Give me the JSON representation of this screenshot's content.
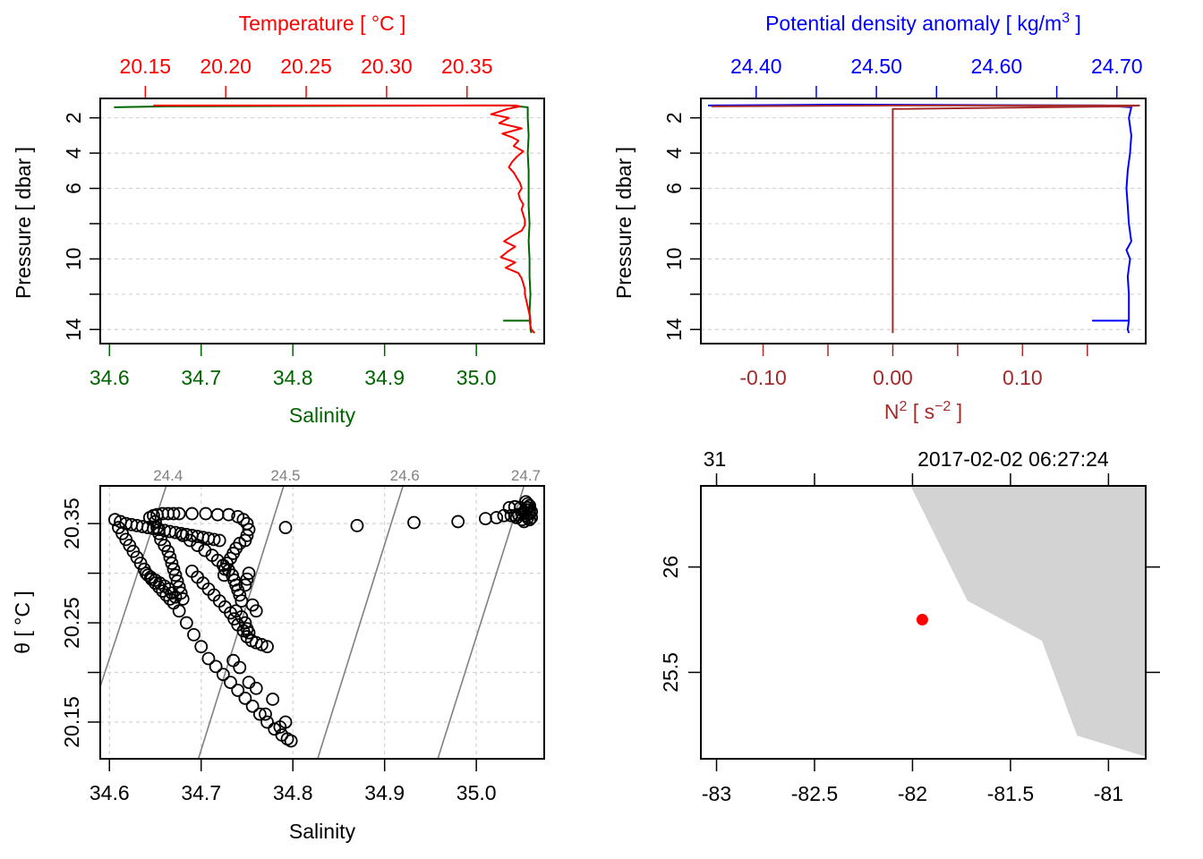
{
  "chart_data": [
    {
      "id": "profile_ts",
      "type": "line",
      "title": "",
      "ylabel": "Pressure [ dbar ]",
      "ylim": [
        14.8,
        0.9
      ],
      "yticks": [
        2,
        4,
        6,
        8,
        10,
        12,
        14
      ],
      "ytick_labels": [
        "2",
        "4",
        "6",
        "",
        "10",
        "",
        "14"
      ],
      "grid": true,
      "top_axis": {
        "label": "Temperature [ °C ]",
        "color": "#ff0000",
        "ticks": [
          20.15,
          20.2,
          20.25,
          20.3,
          20.35
        ],
        "tick_labels": [
          "20.15",
          "20.20",
          "20.25",
          "20.30",
          "20.35"
        ],
        "range": [
          20.122,
          20.398
        ]
      },
      "bottom_axis": {
        "label": "Salinity",
        "color": "#006400",
        "ticks": [
          34.6,
          34.7,
          34.8,
          34.9,
          35.0
        ],
        "tick_labels": [
          "34.6",
          "34.7",
          "34.8",
          "34.9",
          "35.0"
        ],
        "range": [
          34.59,
          35.074
        ]
      },
      "series": [
        {
          "name": "Temperature",
          "color": "#ff0000",
          "pressure": [
            1.3,
            1.3,
            1.35,
            1.5,
            1.8,
            2.0,
            2.3,
            2.6,
            2.9,
            3.1,
            3.3,
            3.6,
            3.9,
            4.2,
            4.5,
            4.8,
            5.1,
            5.4,
            5.7,
            6.0,
            6.3,
            6.6,
            6.9,
            7.2,
            7.5,
            7.8,
            8.1,
            8.4,
            8.7,
            9.0,
            9.3,
            9.6,
            9.9,
            10.2,
            10.5,
            10.8,
            11.1,
            11.4,
            11.7,
            12.0,
            12.4,
            12.8,
            13.2,
            13.6,
            14.0,
            14.2
          ],
          "values": [
            20.155,
            20.38,
            20.383,
            20.375,
            20.365,
            20.376,
            20.37,
            20.384,
            20.372,
            20.378,
            20.382,
            20.379,
            20.385,
            20.381,
            20.378,
            20.376,
            20.379,
            20.381,
            20.383,
            20.384,
            20.382,
            20.383,
            20.385,
            20.384,
            20.385,
            20.386,
            20.386,
            20.384,
            20.378,
            20.373,
            20.38,
            20.375,
            20.371,
            20.38,
            20.374,
            20.382,
            20.384,
            20.385,
            20.386,
            20.386,
            20.387,
            20.388,
            20.389,
            20.389,
            20.39,
            20.392
          ]
        },
        {
          "name": "Salinity",
          "color": "#006400",
          "pressure": [
            1.4,
            1.35,
            1.3,
            1.3,
            1.4,
            2.0,
            3.0,
            4.0,
            5.0,
            6.0,
            7.0,
            8.0,
            9.0,
            10.0,
            11.0,
            12.0,
            13.0,
            13.5,
            13.5,
            13.5,
            14.0,
            14.2
          ],
          "values": [
            34.605,
            34.66,
            35.0,
            35.035,
            35.056,
            35.056,
            35.057,
            35.056,
            35.057,
            35.057,
            35.057,
            35.058,
            35.057,
            35.058,
            35.058,
            35.059,
            35.058,
            35.059,
            35.03,
            35.059,
            35.059,
            35.06
          ]
        }
      ]
    },
    {
      "id": "profile_density_n2",
      "type": "line",
      "title": "",
      "ylabel": "Pressure [ dbar ]",
      "ylim": [
        14.8,
        0.9
      ],
      "yticks": [
        2,
        4,
        6,
        8,
        10,
        12,
        14
      ],
      "ytick_labels": [
        "2",
        "4",
        "6",
        "",
        "10",
        "",
        "14"
      ],
      "grid": true,
      "top_axis": {
        "label": "Potential density anomaly [ kg/m³ ]",
        "label_main": "Potential density anomaly [ kg/m",
        "label_sup": "3",
        "label_end": " ]",
        "color": "#0000ff",
        "ticks": [
          24.4,
          24.45,
          24.5,
          24.55,
          24.6,
          24.65,
          24.7
        ],
        "tick_labels": [
          "24.40",
          "",
          "24.50",
          "",
          "24.60",
          "",
          "24.70"
        ],
        "range": [
          24.354,
          24.724
        ]
      },
      "bottom_axis": {
        "label": "N² [ s⁻² ]",
        "label_main": "N",
        "label_sup": "2",
        "label_mid": " [ s",
        "label_sup2": "−2",
        "label_end": " ]",
        "color": "#a52a2a",
        "ticks": [
          -0.1,
          -0.05,
          0.0,
          0.05,
          0.1,
          0.15
        ],
        "tick_labels": [
          "-0.10",
          "",
          "0.00",
          "",
          "0.10",
          ""
        ],
        "range": [
          -0.148,
          0.195
        ]
      },
      "series": [
        {
          "name": "Potential density anomaly",
          "color": "#0000ff",
          "pressure": [
            1.3,
            1.25,
            1.3,
            1.35,
            1.4,
            2.0,
            3.0,
            4.0,
            5.0,
            6.0,
            7.0,
            8.0,
            9.0,
            9.5,
            10.0,
            11.0,
            12.0,
            13.0,
            13.5,
            13.5,
            13.5,
            14.0,
            14.2
          ],
          "values": [
            24.36,
            24.47,
            24.69,
            24.7,
            24.712,
            24.71,
            24.712,
            24.711,
            24.709,
            24.708,
            24.709,
            24.71,
            24.712,
            24.708,
            24.711,
            24.709,
            24.71,
            24.71,
            24.71,
            24.68,
            24.71,
            24.709,
            24.71
          ]
        },
        {
          "name": "N2",
          "color": "#a52a2a",
          "pressure": [
            1.35,
            1.3,
            1.3,
            1.35,
            1.5,
            14.2
          ],
          "values": [
            -0.14,
            0.0,
            0.19,
            0.18,
            0.0,
            0.0
          ]
        }
      ]
    },
    {
      "id": "ts_diagram",
      "type": "scatter",
      "title": "",
      "xlabel": "Salinity",
      "ylabel": "θ [ °C ]",
      "xlim": [
        34.59,
        35.074
      ],
      "ylim": [
        20.113,
        20.388
      ],
      "xticks": [
        34.6,
        34.7,
        34.8,
        34.9,
        35.0
      ],
      "xtick_labels": [
        "34.6",
        "34.7",
        "34.8",
        "34.9",
        "35.0"
      ],
      "yticks": [
        20.15,
        20.2,
        20.25,
        20.3,
        20.35
      ],
      "ytick_labels": [
        "20.15",
        "",
        "20.25",
        "",
        "20.35"
      ],
      "grid": true,
      "isopycnals": {
        "color": "#808080",
        "levels": [
          24.4,
          24.5,
          24.6,
          24.7
        ],
        "labels": [
          "24.4",
          "24.5",
          "24.6",
          "24.7"
        ],
        "lines": [
          {
            "level": 24.4,
            "s0": 34.589,
            "t0": 20.183,
            "s1": 34.662,
            "t1": 20.388
          },
          {
            "level": 24.5,
            "s0": 34.697,
            "t0": 20.113,
            "s1": 34.79,
            "t1": 20.388
          },
          {
            "level": 24.6,
            "s0": 34.827,
            "t0": 20.113,
            "s1": 34.92,
            "t1": 20.388
          },
          {
            "level": 24.7,
            "s0": 34.958,
            "t0": 20.113,
            "s1": 35.052,
            "t1": 20.388
          }
        ]
      },
      "points": [
        [
          34.606,
          20.354
        ],
        [
          34.612,
          20.352
        ],
        [
          34.618,
          20.35
        ],
        [
          34.624,
          20.349
        ],
        [
          34.63,
          20.348
        ],
        [
          34.636,
          20.347
        ],
        [
          34.642,
          20.346
        ],
        [
          34.648,
          20.345
        ],
        [
          34.654,
          20.344
        ],
        [
          34.66,
          20.343
        ],
        [
          34.666,
          20.342
        ],
        [
          34.672,
          20.341
        ],
        [
          34.678,
          20.34
        ],
        [
          34.684,
          20.339
        ],
        [
          34.69,
          20.338
        ],
        [
          34.696,
          20.337
        ],
        [
          34.702,
          20.336
        ],
        [
          34.708,
          20.335
        ],
        [
          34.714,
          20.334
        ],
        [
          34.72,
          20.333
        ],
        [
          34.61,
          20.346
        ],
        [
          34.614,
          20.34
        ],
        [
          34.618,
          20.334
        ],
        [
          34.622,
          20.328
        ],
        [
          34.626,
          20.322
        ],
        [
          34.63,
          20.316
        ],
        [
          34.634,
          20.31
        ],
        [
          34.638,
          20.304
        ],
        [
          34.642,
          20.298
        ],
        [
          34.646,
          20.294
        ],
        [
          34.65,
          20.29
        ],
        [
          34.654,
          20.286
        ],
        [
          34.658,
          20.282
        ],
        [
          34.662,
          20.278
        ],
        [
          34.666,
          20.274
        ],
        [
          34.67,
          20.27
        ],
        [
          34.64,
          20.3
        ],
        [
          34.645,
          20.296
        ],
        [
          34.65,
          20.293
        ],
        [
          34.655,
          20.29
        ],
        [
          34.66,
          20.287
        ],
        [
          34.665,
          20.284
        ],
        [
          34.668,
          20.28
        ],
        [
          34.672,
          20.276
        ],
        [
          34.648,
          20.358
        ],
        [
          34.652,
          20.359
        ],
        [
          34.658,
          20.36
        ],
        [
          34.664,
          20.36
        ],
        [
          34.67,
          20.36
        ],
        [
          34.676,
          20.36
        ],
        [
          34.69,
          20.36
        ],
        [
          34.705,
          20.36
        ],
        [
          34.718,
          20.359
        ],
        [
          34.73,
          20.359
        ],
        [
          34.74,
          20.357
        ],
        [
          34.746,
          20.354
        ],
        [
          34.75,
          20.35
        ],
        [
          34.752,
          20.344
        ],
        [
          34.75,
          20.338
        ],
        [
          34.748,
          20.333
        ],
        [
          34.644,
          20.356
        ],
        [
          34.65,
          20.352
        ],
        [
          34.652,
          20.346
        ],
        [
          34.654,
          20.34
        ],
        [
          34.656,
          20.334
        ],
        [
          34.66,
          20.328
        ],
        [
          34.664,
          20.322
        ],
        [
          34.666,
          20.316
        ],
        [
          34.668,
          20.31
        ],
        [
          34.67,
          20.304
        ],
        [
          34.672,
          20.298
        ],
        [
          34.674,
          20.292
        ],
        [
          34.676,
          20.286
        ],
        [
          34.678,
          20.28
        ],
        [
          34.68,
          20.274
        ],
        [
          34.68,
          20.338
        ],
        [
          34.688,
          20.333
        ],
        [
          34.696,
          20.328
        ],
        [
          34.704,
          20.323
        ],
        [
          34.712,
          20.318
        ],
        [
          34.718,
          20.313
        ],
        [
          34.724,
          20.308
        ],
        [
          34.73,
          20.303
        ],
        [
          34.734,
          20.298
        ],
        [
          34.736,
          20.293
        ],
        [
          34.738,
          20.288
        ],
        [
          34.74,
          20.283
        ],
        [
          34.742,
          20.278
        ],
        [
          34.744,
          20.272
        ],
        [
          34.742,
          20.33
        ],
        [
          34.738,
          20.325
        ],
        [
          34.735,
          20.32
        ],
        [
          34.732,
          20.315
        ],
        [
          34.728,
          20.31
        ],
        [
          34.726,
          20.304
        ],
        [
          34.725,
          20.298
        ],
        [
          34.69,
          20.302
        ],
        [
          34.696,
          20.296
        ],
        [
          34.702,
          20.29
        ],
        [
          34.708,
          20.284
        ],
        [
          34.714,
          20.278
        ],
        [
          34.72,
          20.272
        ],
        [
          34.726,
          20.266
        ],
        [
          34.732,
          20.26
        ],
        [
          34.736,
          20.254
        ],
        [
          34.74,
          20.248
        ],
        [
          34.746,
          20.242
        ],
        [
          34.75,
          20.236
        ],
        [
          34.755,
          20.232
        ],
        [
          34.76,
          20.23
        ],
        [
          34.766,
          20.228
        ],
        [
          34.772,
          20.226
        ],
        [
          34.738,
          20.262
        ],
        [
          34.744,
          20.256
        ],
        [
          34.748,
          20.25
        ],
        [
          34.75,
          20.244
        ],
        [
          34.752,
          20.24
        ],
        [
          34.756,
          20.268
        ],
        [
          34.76,
          20.262
        ],
        [
          34.752,
          20.3
        ],
        [
          34.75,
          20.294
        ],
        [
          34.748,
          20.288
        ],
        [
          34.676,
          20.262
        ],
        [
          34.684,
          20.25
        ],
        [
          34.692,
          20.238
        ],
        [
          34.7,
          20.226
        ],
        [
          34.708,
          20.214
        ],
        [
          34.716,
          20.206
        ],
        [
          34.724,
          20.198
        ],
        [
          34.732,
          20.19
        ],
        [
          34.74,
          20.182
        ],
        [
          34.748,
          20.174
        ],
        [
          34.756,
          20.166
        ],
        [
          34.764,
          20.158
        ],
        [
          34.772,
          20.15
        ],
        [
          34.78,
          20.143
        ],
        [
          34.788,
          20.137
        ],
        [
          34.794,
          20.133
        ],
        [
          34.798,
          20.131
        ],
        [
          34.735,
          20.212
        ],
        [
          34.742,
          20.205
        ],
        [
          34.752,
          20.19
        ],
        [
          34.76,
          20.184
        ],
        [
          34.786,
          20.145
        ],
        [
          34.792,
          20.15
        ],
        [
          34.77,
          20.158
        ],
        [
          34.778,
          20.173
        ],
        [
          34.792,
          20.346
        ],
        [
          34.87,
          20.348
        ],
        [
          34.932,
          20.351
        ],
        [
          34.98,
          20.352
        ],
        [
          35.01,
          20.355
        ],
        [
          35.022,
          20.356
        ],
        [
          35.03,
          20.358
        ],
        [
          35.036,
          20.366
        ],
        [
          35.042,
          20.367
        ],
        [
          35.048,
          20.366
        ],
        [
          35.038,
          20.358
        ],
        [
          35.042,
          20.358
        ],
        [
          35.046,
          20.359
        ],
        [
          35.05,
          20.36
        ],
        [
          35.052,
          20.362
        ],
        [
          35.054,
          20.364
        ],
        [
          35.056,
          20.366
        ],
        [
          35.058,
          20.368
        ],
        [
          35.056,
          20.356
        ],
        [
          35.058,
          20.354
        ],
        [
          35.06,
          20.356
        ],
        [
          35.054,
          20.358
        ],
        [
          35.05,
          20.354
        ],
        [
          35.044,
          20.356
        ],
        [
          35.052,
          20.352
        ],
        [
          35.058,
          20.36
        ],
        [
          35.06,
          20.362
        ],
        [
          35.056,
          20.37
        ],
        [
          35.054,
          20.372
        ],
        [
          35.058,
          20.364
        ]
      ],
      "point_style": "open-circle",
      "point_color": "#000000"
    },
    {
      "id": "station_map",
      "type": "scatter",
      "title": "",
      "xlim": [
        -83.08,
        -80.81
      ],
      "ylim": [
        25.09,
        26.385
      ],
      "xticks": [
        -83,
        -82.5,
        -82,
        -81.5,
        -81
      ],
      "xtick_labels": [
        "-83",
        "-82.5",
        "-82",
        "-81.5",
        "-81"
      ],
      "yticks": [
        25.5,
        26
      ],
      "ytick_labels": [
        "25.5",
        "26"
      ],
      "grid": false,
      "top_axis_labels": [
        "31",
        "",
        "",
        "2017-02-02 06:27:24",
        ""
      ],
      "top_ticks_lon": [
        -83,
        -82.5,
        -82,
        -81.5,
        -81
      ],
      "land_color": "#d3d3d3",
      "coastline": [
        [
          -82.01,
          26.385
        ],
        [
          -81.72,
          25.84
        ],
        [
          -81.34,
          25.65
        ],
        [
          -81.16,
          25.2
        ],
        [
          -80.81,
          25.1
        ],
        [
          -80.81,
          26.385
        ]
      ],
      "station": {
        "lon": -81.95,
        "lat": 25.75,
        "color": "#ff0000"
      }
    }
  ]
}
